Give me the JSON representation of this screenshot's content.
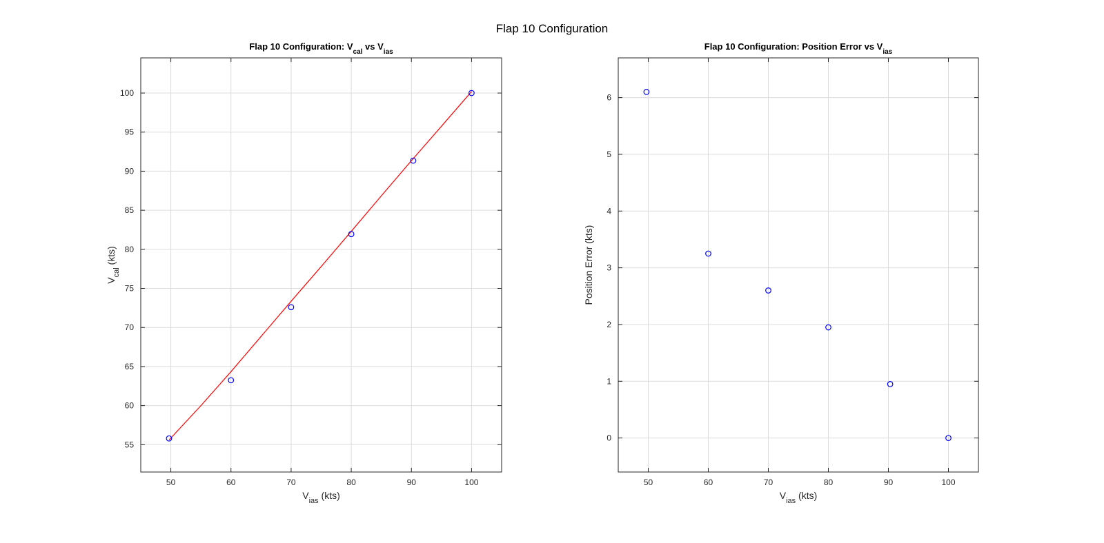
{
  "figure": {
    "suptitle": "Flap 10 Configuration"
  },
  "colors": {
    "marker": "#0000ff",
    "fit_line": "#ff0000",
    "grid": "#dcdcdc",
    "axis": "#262626",
    "tick_text": "#262626"
  },
  "chart_data": [
    {
      "type": "scatter",
      "title": {
        "main": "Flap 10 Configuration: V",
        "sub1": "cal",
        "mid": " vs V",
        "sub2": "ias"
      },
      "xlabel": {
        "main": "V",
        "sub": "ias",
        "suffix": " (kts)"
      },
      "ylabel": {
        "main": "V",
        "sub": "cal",
        "suffix": " (kts)"
      },
      "xlim": [
        45,
        105
      ],
      "ylim": [
        51.5,
        104.5
      ],
      "xticks": [
        50,
        60,
        70,
        80,
        90,
        100
      ],
      "yticks": [
        55,
        60,
        65,
        70,
        75,
        80,
        85,
        90,
        95,
        100
      ],
      "grid": true,
      "series": [
        {
          "marker": "circle",
          "x": [
            49.7,
            60.0,
            70.0,
            80.0,
            90.3,
            100.0
          ],
          "y": [
            55.8,
            63.25,
            72.6,
            81.95,
            91.35,
            100.0
          ]
        },
        {
          "type": "line",
          "x": [
            49.7,
            55,
            60,
            65,
            70,
            75,
            80,
            85,
            90,
            95,
            100
          ],
          "y": [
            55.6,
            60.0,
            64.35,
            68.85,
            73.35,
            77.8,
            82.3,
            86.85,
            91.35,
            95.75,
            100.2
          ]
        }
      ]
    },
    {
      "type": "scatter",
      "title": {
        "main": "Flap 10 Configuration: Position Error vs V",
        "sub": "ias"
      },
      "xlabel": {
        "main": "V",
        "sub": "ias",
        "suffix": " (kts)"
      },
      "ylabel": {
        "main": "Position Error (kts)"
      },
      "xlim": [
        45,
        105
      ],
      "ylim": [
        -0.6,
        6.7
      ],
      "xticks": [
        50,
        60,
        70,
        80,
        90,
        100
      ],
      "yticks": [
        0,
        1,
        2,
        3,
        4,
        5,
        6
      ],
      "grid": true,
      "series": [
        {
          "marker": "circle",
          "x": [
            49.7,
            60.0,
            70.0,
            80.0,
            90.3,
            100.0
          ],
          "y": [
            6.1,
            3.25,
            2.6,
            1.95,
            0.95,
            0.0
          ]
        }
      ]
    }
  ]
}
